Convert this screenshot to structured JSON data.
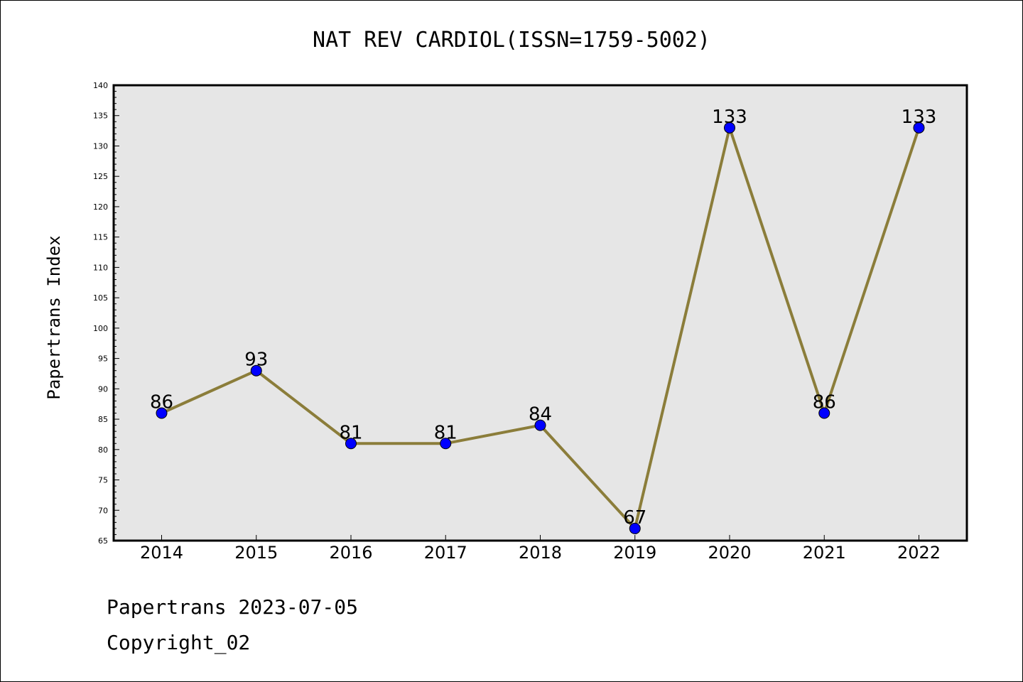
{
  "chart_data": {
    "type": "line",
    "title": "NAT REV CARDIOL(ISSN=1759-5002)",
    "ylabel": "Papertrans Index",
    "xlabel": "",
    "categories": [
      "2014",
      "2015",
      "2016",
      "2017",
      "2018",
      "2019",
      "2020",
      "2021",
      "2022"
    ],
    "series": [
      {
        "values": [
          86,
          93,
          81,
          81,
          84,
          67,
          133,
          86,
          133
        ]
      }
    ],
    "data_labels": [
      "86",
      "93",
      "81",
      "81",
      "84",
      "67",
      "133",
      "86",
      "133"
    ],
    "ylim": [
      65,
      140
    ],
    "yticks": [
      65,
      70,
      75,
      80,
      85,
      90,
      95,
      100,
      105,
      110,
      115,
      120,
      125,
      130,
      135,
      140
    ],
    "grid": false,
    "legend": "none",
    "colors": {
      "line": "#8b7d3a",
      "marker": "#0000ff",
      "plot_background": "#e6e6e6"
    }
  },
  "footer": {
    "line1": "Papertrans 2023-07-05",
    "line2": "Copyright_02"
  }
}
